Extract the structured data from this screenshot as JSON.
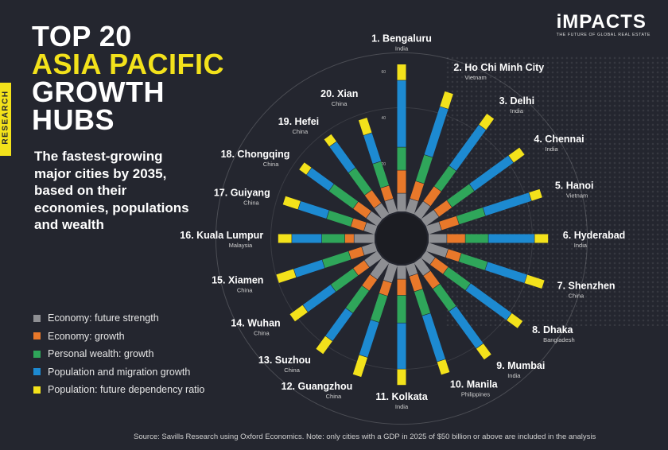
{
  "header": {
    "title_lines": [
      "TOP 20",
      "ASIA PACIFIC",
      "GROWTH",
      "HUBS"
    ],
    "subtitle": "The fastest-growing major cities by 2035, based on their economies, populations and wealth",
    "side_tab": "RESEARCH"
  },
  "logo": {
    "name": "iMPACTS",
    "tagline": "THE FUTURE OF GLOBAL REAL ESTATE"
  },
  "source": "Source: Savills Research using Oxford Economics. Note: only cities with a GDP in 2025 of $50 billion or above are included in the analysis",
  "colors": {
    "background": "#24262f",
    "economy_future_strength": "#8e8f93",
    "economy_growth": "#e8782a",
    "personal_wealth_growth": "#2fa65a",
    "population_migration_growth": "#1d8ad1",
    "population_dependency": "#f3e21b"
  },
  "chart_data": {
    "type": "radial-stacked-bar",
    "scale_ticks": [
      20,
      40,
      60
    ],
    "series": [
      {
        "name": "Economy: future strength",
        "color": "#8e8f93"
      },
      {
        "name": "Economy: growth",
        "color": "#e8782a"
      },
      {
        "name": "Personal wealth: growth",
        "color": "#2fa65a"
      },
      {
        "name": "Population and migration growth",
        "color": "#1d8ad1"
      },
      {
        "name": "Population: future dependency ratio",
        "color": "#f3e21b"
      }
    ],
    "cities": [
      {
        "label": "1. Bengaluru",
        "country": "India",
        "values": [
          8,
          10,
          10,
          29,
          7
        ]
      },
      {
        "label": "2. Ho Chi Minh City",
        "country": "Vietnam",
        "values": [
          6,
          8,
          12,
          22,
          7
        ]
      },
      {
        "label": "3. Delhi",
        "country": "India",
        "values": [
          7,
          8,
          11,
          22,
          6
        ]
      },
      {
        "label": "4. Chennai",
        "country": "India",
        "values": [
          7,
          7,
          12,
          21,
          6
        ]
      },
      {
        "label": "5. Hanoi",
        "country": "Vietnam",
        "values": [
          6,
          8,
          12,
          21,
          5
        ]
      },
      {
        "label": "6. Hyderabad",
        "country": "India",
        "values": [
          8,
          8,
          10,
          20,
          6
        ]
      },
      {
        "label": "7. Shenzhen",
        "country": "China",
        "values": [
          9,
          6,
          12,
          18,
          8
        ]
      },
      {
        "label": "8. Dhaka",
        "country": "Bangladesh",
        "values": [
          5,
          7,
          12,
          22,
          6
        ]
      },
      {
        "label": "9. Mumbai",
        "country": "India",
        "values": [
          7,
          7,
          12,
          20,
          6
        ]
      },
      {
        "label": "10. Manila",
        "country": "Philippines",
        "values": [
          5,
          7,
          11,
          21,
          6
        ]
      },
      {
        "label": "11. Kolkata",
        "country": "India",
        "values": [
          6,
          7,
          12,
          20,
          7
        ]
      },
      {
        "label": "12. Guangzhou",
        "country": "China",
        "values": [
          8,
          6,
          12,
          16,
          9
        ]
      },
      {
        "label": "13. Suzhou",
        "country": "China",
        "values": [
          9,
          6,
          12,
          15,
          7
        ]
      },
      {
        "label": "14. Wuhan",
        "country": "China",
        "values": [
          7,
          6,
          12,
          15,
          7
        ]
      },
      {
        "label": "15. Xiamen",
        "country": "China",
        "values": [
          6,
          6,
          12,
          13,
          8
        ]
      },
      {
        "label": "16. Kuala Lumpur",
        "country": "Malaysia",
        "values": [
          9,
          4,
          10,
          13,
          6
        ]
      },
      {
        "label": "17. Guiyang",
        "country": "China",
        "values": [
          5,
          6,
          11,
          13,
          7
        ]
      },
      {
        "label": "18. Chongqing",
        "country": "China",
        "values": [
          6,
          7,
          13,
          12,
          4
        ]
      },
      {
        "label": "19. Hefei",
        "country": "China",
        "values": [
          6,
          7,
          12,
          14,
          4
        ]
      },
      {
        "label": "20. Xian",
        "country": "China",
        "values": [
          6,
          6,
          11,
          13,
          7
        ]
      }
    ]
  }
}
